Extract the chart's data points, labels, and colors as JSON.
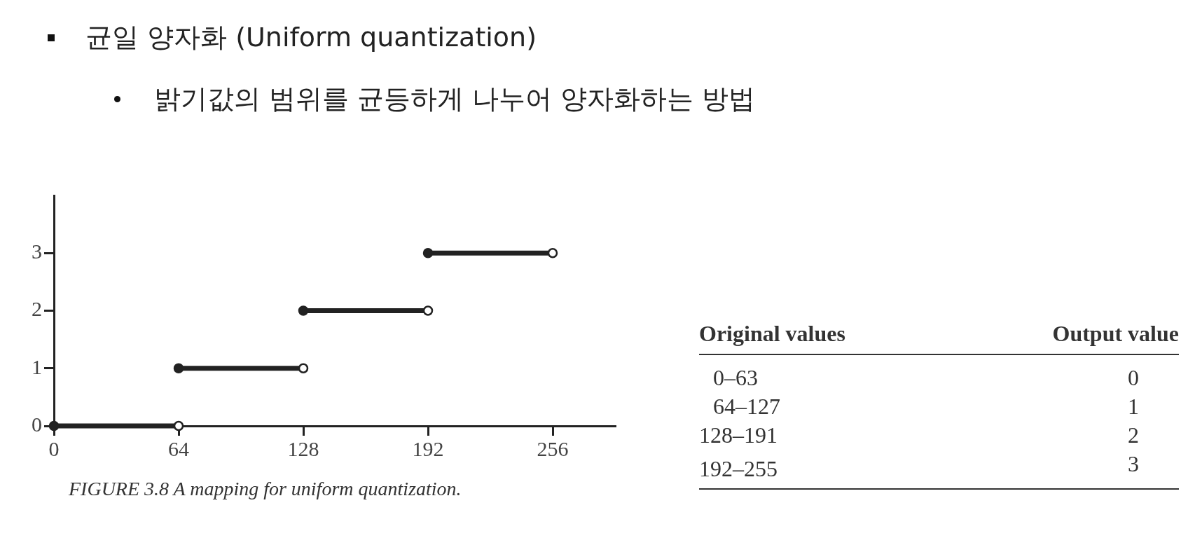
{
  "chart_data": [
    {
      "type": "line",
      "title": "균일 양자화 (Uniform quantization)",
      "subtitle": "밝기값의 범위를 균등하게 나누어 양자화하는 방법",
      "series": [
        {
          "color": "#222222",
          "x": [
            0,
            64
          ],
          "values": [
            0,
            0
          ]
        },
        {
          "color": "#222222",
          "x": [
            64,
            128
          ],
          "values": [
            1,
            1
          ]
        },
        {
          "color": "#222222",
          "x": [
            128,
            192
          ],
          "values": [
            2,
            2
          ]
        },
        {
          "color": "#222222",
          "x": [
            192,
            256
          ],
          "values": [
            3,
            3
          ]
        }
      ],
      "xlim": [
        0,
        288
      ],
      "xticks": [
        0,
        64,
        128,
        192,
        256
      ],
      "ylim": [
        0,
        4
      ],
      "yticks": [
        0,
        1,
        2,
        3
      ],
      "grid": false,
      "legend": false,
      "marker": "circle",
      "line_style": "solid",
      "annotations": [
        "FIGURE 3.8 A mapping for uniform quantization."
      ]
    },
    {
      "type": "other",
      "xlabel": "Original values",
      "ylabel": "Output value",
      "categories": [
        "0–63",
        "64–127",
        "128–191",
        "192–255"
      ],
      "values": [
        0,
        1,
        2,
        3
      ],
      "data_labels": true
    }
  ]
}
